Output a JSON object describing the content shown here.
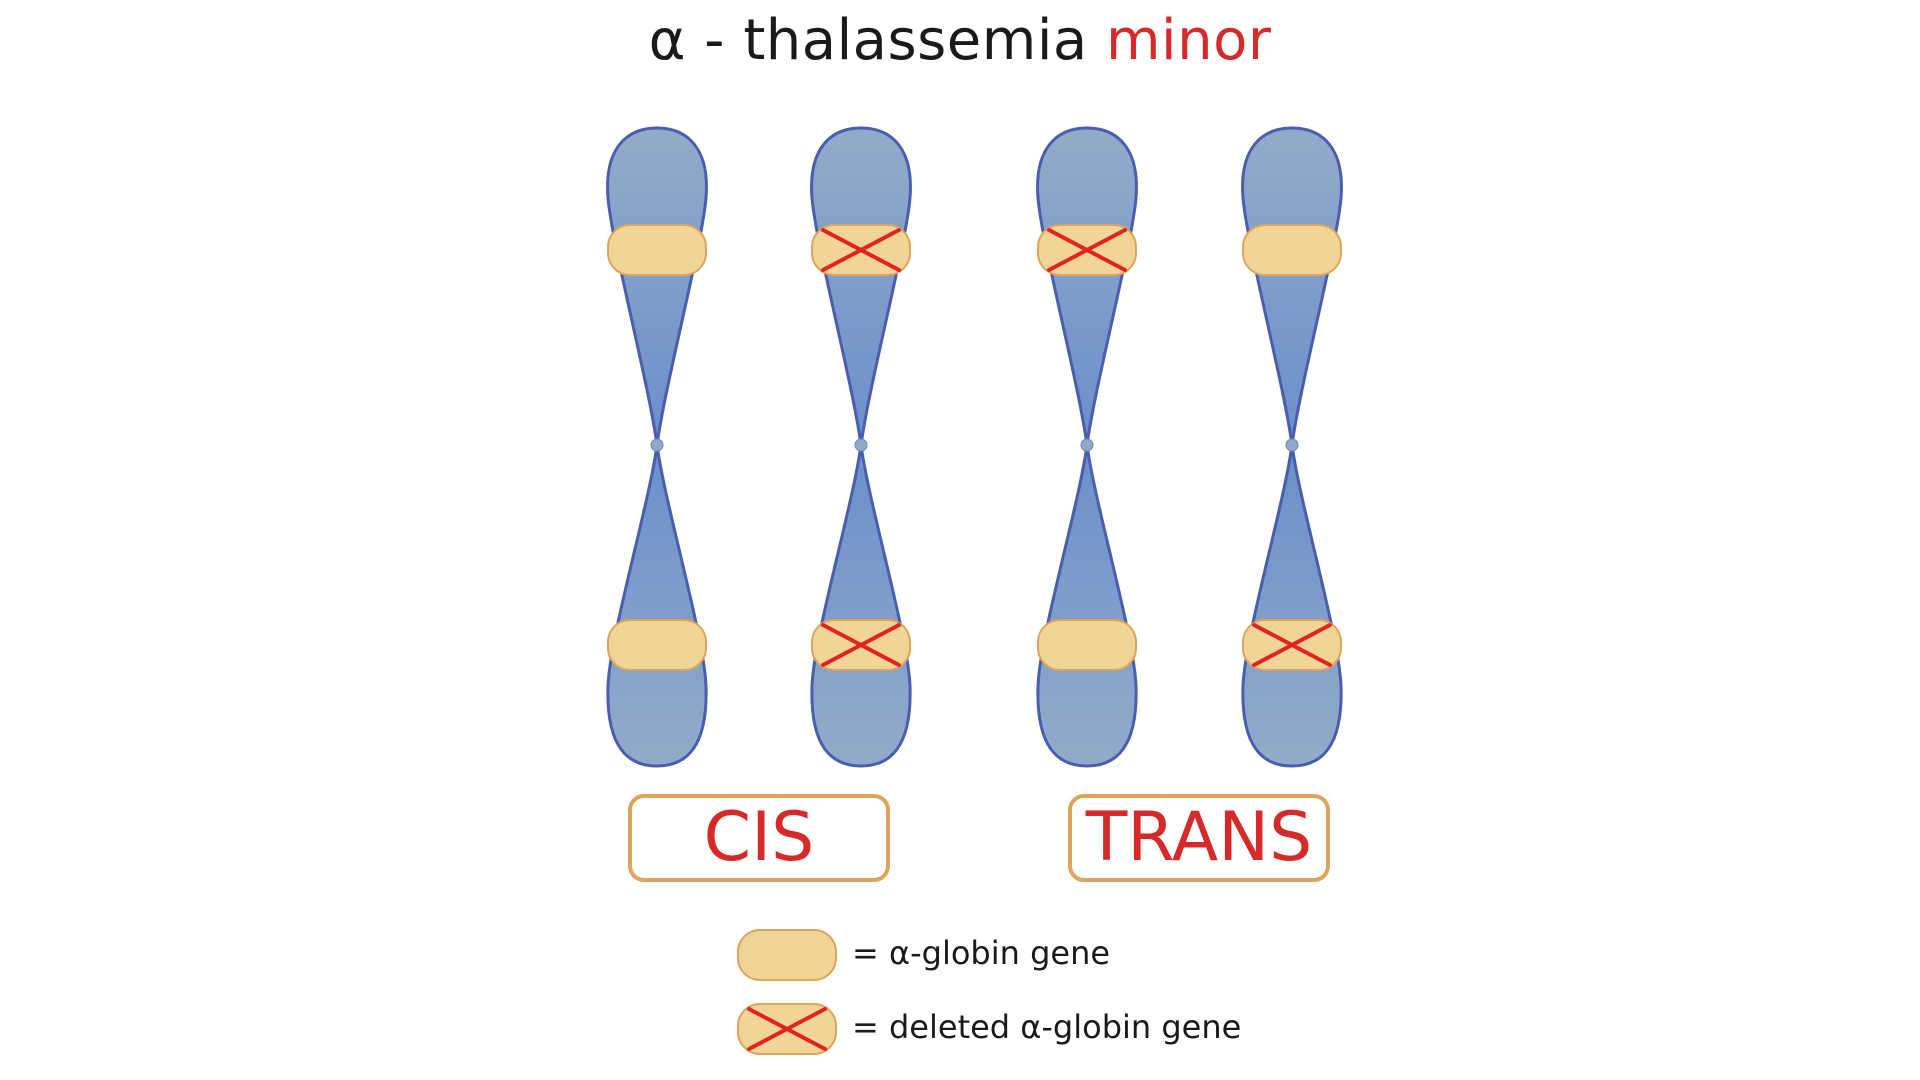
{
  "title": {
    "prefix": "α - thalassemia ",
    "highlight": "minor"
  },
  "colors": {
    "chromosome_fill_light": "#93abc9",
    "chromosome_fill_dark": "#6b8fcb",
    "chromosome_outline": "#4a5eae",
    "gene_fill": "#f1d597",
    "gene_outline": "#dba55d",
    "deletion_mark": "#e32222",
    "label_text": "#d62a2a"
  },
  "chromosomes": [
    {
      "group": "CIS",
      "top_gene": "present",
      "bottom_gene": "present"
    },
    {
      "group": "CIS",
      "top_gene": "deleted",
      "bottom_gene": "deleted"
    },
    {
      "group": "TRANS",
      "top_gene": "deleted",
      "bottom_gene": "present"
    },
    {
      "group": "TRANS",
      "top_gene": "present",
      "bottom_gene": "deleted"
    }
  ],
  "groups": {
    "cis": "CIS",
    "trans": "TRANS"
  },
  "legend": {
    "gene": "= α-globin gene",
    "deleted": "= deleted α-globin gene"
  }
}
